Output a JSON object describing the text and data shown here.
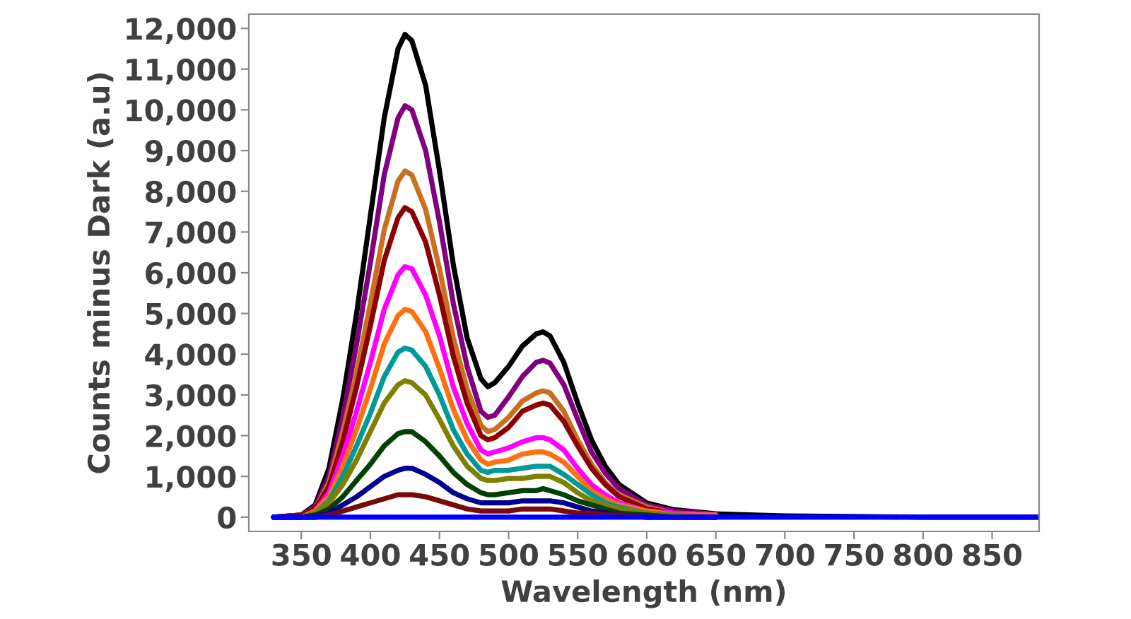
{
  "chart_data": {
    "type": "line",
    "xlabel": "Wavelength (nm)",
    "ylabel": "Counts minus Dark (a.u)",
    "x": [
      330,
      350,
      360,
      370,
      380,
      390,
      400,
      410,
      420,
      425,
      430,
      440,
      450,
      460,
      470,
      480,
      485,
      490,
      500,
      510,
      520,
      525,
      530,
      540,
      550,
      560,
      570,
      580,
      600,
      620,
      650,
      700,
      800,
      884
    ],
    "xlim": [
      312,
      884
    ],
    "ylim": [
      -350,
      12350
    ],
    "xticks": [
      350,
      400,
      450,
      500,
      550,
      600,
      650,
      700,
      750,
      800,
      850
    ],
    "yticks": [
      {
        "value": 0,
        "label": "0"
      },
      {
        "value": 1000,
        "label": "1,000"
      },
      {
        "value": 2000,
        "label": "2,000"
      },
      {
        "value": 3000,
        "label": "3,000"
      },
      {
        "value": 4000,
        "label": "4,000"
      },
      {
        "value": 5000,
        "label": "5,000"
      },
      {
        "value": 6000,
        "label": "6,000"
      },
      {
        "value": 7000,
        "label": "7,000"
      },
      {
        "value": 8000,
        "label": "8,000"
      },
      {
        "value": 9000,
        "label": "9,000"
      },
      {
        "value": 10000,
        "label": "10,000"
      },
      {
        "value": 11000,
        "label": "11,000"
      },
      {
        "value": 12000,
        "label": "12,000"
      }
    ],
    "grid": false,
    "legend": false,
    "marker": "none",
    "line_style": "solid",
    "series": [
      {
        "color": "#000000",
        "values": [
          0,
          50,
          300,
          1200,
          2900,
          5000,
          7400,
          9800,
          11500,
          11850,
          11700,
          10600,
          8500,
          6200,
          4400,
          3400,
          3200,
          3300,
          3700,
          4200,
          4500,
          4550,
          4450,
          3800,
          2800,
          1900,
          1250,
          800,
          350,
          180,
          80,
          30,
          0,
          0
        ]
      },
      {
        "color": "#800080",
        "values": [
          0,
          50,
          250,
          1000,
          2450,
          4250,
          6250,
          8400,
          9800,
          10100,
          10000,
          9000,
          7250,
          5250,
          3700,
          2600,
          2450,
          2500,
          2950,
          3450,
          3800,
          3850,
          3780,
          3250,
          2400,
          1600,
          1080,
          700,
          300,
          150,
          70,
          null,
          null,
          null
        ]
      },
      {
        "color": "#c87020",
        "values": [
          0,
          50,
          200,
          850,
          2100,
          3550,
          5250,
          7050,
          8250,
          8500,
          8400,
          7550,
          6100,
          4400,
          3150,
          2250,
          2100,
          2150,
          2450,
          2850,
          3050,
          3100,
          3050,
          2600,
          1900,
          1300,
          850,
          550,
          250,
          100,
          50,
          null,
          null,
          null
        ]
      },
      {
        "color": "#8b0000",
        "values": [
          0,
          50,
          200,
          750,
          1850,
          3200,
          4700,
          6300,
          7350,
          7600,
          7500,
          6750,
          5450,
          3950,
          2800,
          2000,
          1900,
          1950,
          2200,
          2600,
          2750,
          2800,
          2750,
          2350,
          1750,
          1200,
          800,
          500,
          200,
          100,
          50,
          null,
          null,
          null
        ]
      },
      {
        "color": "#ff00ff",
        "values": [
          0,
          0,
          150,
          600,
          1500,
          2600,
          3800,
          5100,
          5950,
          6150,
          6100,
          5450,
          4450,
          3200,
          2300,
          1650,
          1550,
          1600,
          1700,
          1850,
          1950,
          1950,
          1900,
          1650,
          1200,
          800,
          550,
          350,
          150,
          100,
          50,
          null,
          null,
          null
        ]
      },
      {
        "color": "#ff7010",
        "values": [
          0,
          0,
          150,
          500,
          1250,
          2150,
          3150,
          4250,
          4950,
          5100,
          5050,
          4550,
          3650,
          2650,
          1900,
          1400,
          1300,
          1350,
          1400,
          1550,
          1600,
          1600,
          1550,
          1350,
          1000,
          650,
          450,
          300,
          150,
          50,
          50,
          null,
          null,
          null
        ]
      },
      {
        "color": "#009999",
        "values": [
          0,
          0,
          100,
          400,
          1000,
          1750,
          2550,
          3450,
          4050,
          4150,
          4100,
          3700,
          3000,
          2150,
          1550,
          1150,
          1100,
          1150,
          1150,
          1200,
          1250,
          1250,
          1250,
          1050,
          800,
          550,
          350,
          250,
          100,
          50,
          0,
          null,
          null,
          null
        ]
      },
      {
        "color": "#808000",
        "values": [
          0,
          0,
          100,
          350,
          800,
          1400,
          2100,
          2800,
          3250,
          3350,
          3300,
          3000,
          2400,
          1750,
          1250,
          950,
          900,
          900,
          950,
          950,
          1000,
          1000,
          1000,
          850,
          600,
          400,
          300,
          200,
          100,
          50,
          0,
          null,
          null,
          null
        ]
      },
      {
        "color": "#004000",
        "values": [
          0,
          0,
          50,
          200,
          500,
          900,
          1300,
          1750,
          2050,
          2100,
          2100,
          1850,
          1500,
          1100,
          800,
          600,
          550,
          550,
          600,
          650,
          650,
          700,
          650,
          550,
          400,
          300,
          200,
          100,
          50,
          0,
          0,
          null,
          null,
          null
        ]
      },
      {
        "color": "#000090",
        "values": [
          0,
          0,
          0,
          100,
          300,
          500,
          750,
          1000,
          1150,
          1200,
          1200,
          1050,
          850,
          600,
          450,
          350,
          350,
          350,
          350,
          400,
          400,
          400,
          400,
          350,
          250,
          150,
          100,
          50,
          0,
          0,
          0,
          null,
          null,
          null
        ]
      },
      {
        "color": "#7a0a0a",
        "values": [
          0,
          0,
          0,
          50,
          150,
          250,
          350,
          450,
          550,
          550,
          550,
          500,
          400,
          300,
          200,
          150,
          150,
          150,
          150,
          200,
          200,
          200,
          200,
          150,
          100,
          100,
          50,
          50,
          0,
          0,
          0,
          null,
          null,
          null
        ]
      },
      {
        "color": "#0000ff",
        "values": [
          0,
          0,
          0,
          0,
          0,
          0,
          0,
          0,
          0,
          0,
          0,
          0,
          0,
          0,
          0,
          0,
          0,
          0,
          0,
          0,
          0,
          0,
          0,
          0,
          0,
          0,
          0,
          0,
          0,
          0,
          0,
          0,
          0,
          0
        ]
      }
    ]
  }
}
